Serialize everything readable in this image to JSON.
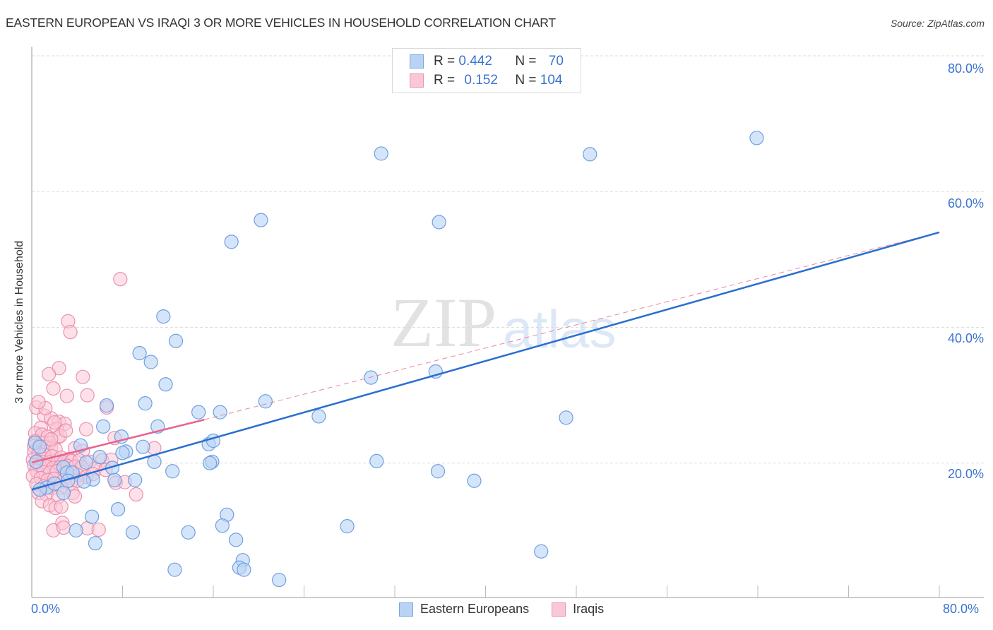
{
  "header": {
    "title": "EASTERN EUROPEAN VS IRAQI 3 OR MORE VEHICLES IN HOUSEHOLD CORRELATION CHART",
    "source": "Source: ZipAtlas.com"
  },
  "legend": {
    "rows": [
      {
        "r_label": "R = ",
        "r_value": "0.442",
        "n_label": "N = ",
        "n_value": "70"
      },
      {
        "r_label": "R = ",
        "r_value": "0.152",
        "n_label": "N = ",
        "n_value": "104"
      }
    ]
  },
  "bottom_legend": [
    {
      "label": "Eastern Europeans"
    },
    {
      "label": "Iraqis"
    }
  ],
  "axes": {
    "y_label": "3 or more Vehicles in Household",
    "x_ticks": [
      "0.0%",
      "80.0%"
    ],
    "y_ticks": [
      "80.0%",
      "60.0%",
      "40.0%",
      "20.0%"
    ]
  },
  "watermark": {
    "zip": "ZIP",
    "atlas": "atlas"
  },
  "colors": {
    "blue": "#3b73d0",
    "blue_fill": "#b9d3f5",
    "blue_stroke": "#6f9fe0",
    "pink": "#e8648f",
    "pink_fill": "#f9c8d7",
    "pink_stroke": "#ec8fae"
  },
  "chart_data": {
    "type": "scatter",
    "title": "EASTERN EUROPEAN VS IRAQI 3 OR MORE VEHICLES IN HOUSEHOLD CORRELATION CHART",
    "xlabel": "",
    "ylabel": "3 or more Vehicles in Household",
    "xlim": [
      0,
      80
    ],
    "ylim": [
      0,
      80
    ],
    "x_unit": "%",
    "y_unit": "%",
    "grid": true,
    "legend_position": "top-center",
    "series": [
      {
        "name": "Eastern Europeans",
        "R": 0.442,
        "N": 70,
        "trend": {
          "x0": 0,
          "y0": 16.1,
          "x1": 80,
          "y1": 54.0
        },
        "points": [
          [
            63.9,
            67.9
          ],
          [
            30.8,
            65.6
          ],
          [
            49.2,
            65.5
          ],
          [
            20.2,
            55.8
          ],
          [
            35.9,
            55.5
          ],
          [
            17.6,
            52.6
          ],
          [
            11.6,
            41.6
          ],
          [
            12.7,
            38.0
          ],
          [
            9.5,
            36.2
          ],
          [
            10.5,
            34.9
          ],
          [
            11.8,
            31.6
          ],
          [
            35.6,
            33.5
          ],
          [
            29.9,
            32.6
          ],
          [
            20.6,
            29.1
          ],
          [
            10.0,
            28.8
          ],
          [
            6.6,
            28.5
          ],
          [
            14.7,
            27.5
          ],
          [
            16.6,
            27.5
          ],
          [
            25.3,
            26.9
          ],
          [
            47.1,
            26.7
          ],
          [
            6.3,
            25.4
          ],
          [
            11.1,
            25.4
          ],
          [
            7.9,
            23.9
          ],
          [
            15.6,
            22.8
          ],
          [
            16.0,
            23.3
          ],
          [
            4.3,
            22.6
          ],
          [
            9.8,
            22.4
          ],
          [
            8.3,
            21.7
          ],
          [
            8.0,
            21.5
          ],
          [
            6.0,
            20.9
          ],
          [
            10.8,
            20.2
          ],
          [
            15.9,
            20.2
          ],
          [
            15.7,
            20.0
          ],
          [
            4.8,
            20.1
          ],
          [
            30.4,
            20.3
          ],
          [
            2.8,
            19.4
          ],
          [
            7.1,
            19.3
          ],
          [
            12.4,
            18.8
          ],
          [
            3.1,
            18.6
          ],
          [
            3.6,
            18.6
          ],
          [
            35.8,
            18.8
          ],
          [
            5.4,
            17.6
          ],
          [
            7.3,
            17.5
          ],
          [
            9.1,
            17.5
          ],
          [
            1.3,
            16.4
          ],
          [
            2.0,
            17.0
          ],
          [
            3.2,
            17.4
          ],
          [
            4.6,
            17.3
          ],
          [
            39.0,
            17.4
          ],
          [
            0.7,
            16.1
          ],
          [
            2.8,
            15.6
          ],
          [
            0.4,
            20.2
          ],
          [
            0.3,
            23.0
          ],
          [
            0.7,
            22.4
          ],
          [
            7.6,
            13.2
          ],
          [
            17.2,
            12.4
          ],
          [
            5.3,
            12.1
          ],
          [
            16.8,
            10.8
          ],
          [
            27.8,
            10.7
          ],
          [
            3.9,
            10.1
          ],
          [
            8.9,
            9.8
          ],
          [
            13.8,
            9.8
          ],
          [
            18.0,
            8.7
          ],
          [
            5.6,
            8.2
          ],
          [
            18.6,
            5.7
          ],
          [
            44.9,
            7.0
          ],
          [
            18.3,
            4.6
          ],
          [
            18.7,
            4.3
          ],
          [
            12.6,
            4.3
          ],
          [
            21.8,
            2.8
          ]
        ]
      },
      {
        "name": "Iraqis",
        "R": 0.152,
        "N": 104,
        "trend": {
          "x0": 0,
          "y0": 20.1,
          "x1": 15.2,
          "y1": 26.4,
          "dashed_extension_to": {
            "x": 80,
            "y": 54.0
          }
        },
        "points": [
          [
            7.8,
            47.1
          ],
          [
            3.2,
            40.9
          ],
          [
            3.4,
            39.3
          ],
          [
            2.4,
            34.0
          ],
          [
            1.5,
            33.1
          ],
          [
            4.5,
            32.7
          ],
          [
            1.9,
            31.0
          ],
          [
            3.1,
            29.9
          ],
          [
            4.9,
            30.0
          ],
          [
            6.6,
            28.2
          ],
          [
            1.1,
            27.0
          ],
          [
            1.7,
            26.6
          ],
          [
            2.4,
            26.1
          ],
          [
            2.9,
            25.8
          ],
          [
            0.8,
            25.2
          ],
          [
            2.2,
            25.0
          ],
          [
            4.8,
            25.0
          ],
          [
            0.3,
            24.4
          ],
          [
            0.9,
            24.2
          ],
          [
            1.4,
            23.9
          ],
          [
            2.3,
            23.8
          ],
          [
            0.3,
            23.2
          ],
          [
            1.0,
            23.0
          ],
          [
            1.6,
            23.0
          ],
          [
            2.5,
            24.0
          ],
          [
            7.3,
            23.7
          ],
          [
            0.2,
            22.5
          ],
          [
            0.7,
            22.5
          ],
          [
            1.2,
            22.4
          ],
          [
            1.7,
            22.2
          ],
          [
            2.1,
            22.0
          ],
          [
            3.8,
            22.2
          ],
          [
            4.5,
            21.8
          ],
          [
            10.8,
            22.2
          ],
          [
            0.2,
            21.6
          ],
          [
            0.6,
            21.4
          ],
          [
            1.1,
            21.2
          ],
          [
            1.8,
            21.0
          ],
          [
            2.6,
            20.8
          ],
          [
            3.3,
            20.6
          ],
          [
            0.1,
            20.5
          ],
          [
            0.5,
            20.3
          ],
          [
            1.0,
            20.2
          ],
          [
            1.5,
            20.1
          ],
          [
            2.2,
            20.0
          ],
          [
            2.8,
            20.1
          ],
          [
            3.5,
            20.3
          ],
          [
            4.2,
            20.4
          ],
          [
            5.1,
            20.2
          ],
          [
            6.2,
            20.4
          ],
          [
            7.0,
            20.5
          ],
          [
            0.2,
            19.7
          ],
          [
            0.7,
            19.6
          ],
          [
            1.3,
            19.5
          ],
          [
            1.9,
            19.3
          ],
          [
            2.5,
            19.4
          ],
          [
            3.1,
            19.6
          ],
          [
            3.8,
            19.5
          ],
          [
            4.4,
            19.4
          ],
          [
            5.6,
            19.2
          ],
          [
            0.4,
            18.9
          ],
          [
            1.0,
            18.7
          ],
          [
            1.6,
            18.6
          ],
          [
            2.2,
            18.8
          ],
          [
            2.9,
            18.4
          ],
          [
            3.5,
            18.6
          ],
          [
            4.1,
            18.2
          ],
          [
            4.8,
            18.0
          ],
          [
            5.4,
            18.4
          ],
          [
            6.5,
            19.0
          ],
          [
            0.1,
            18.1
          ],
          [
            0.8,
            17.8
          ],
          [
            1.4,
            17.5
          ],
          [
            2.0,
            17.7
          ],
          [
            2.7,
            17.3
          ],
          [
            3.4,
            17.0
          ],
          [
            4.0,
            17.4
          ],
          [
            0.4,
            16.9
          ],
          [
            1.1,
            16.6
          ],
          [
            1.8,
            16.3
          ],
          [
            2.6,
            16.4
          ],
          [
            7.4,
            17.1
          ],
          [
            8.2,
            17.2
          ],
          [
            0.6,
            15.6
          ],
          [
            1.3,
            15.4
          ],
          [
            2.3,
            15.0
          ],
          [
            3.6,
            15.6
          ],
          [
            3.8,
            15.1
          ],
          [
            9.2,
            15.4
          ],
          [
            0.9,
            14.4
          ],
          [
            1.6,
            13.8
          ],
          [
            2.1,
            13.4
          ],
          [
            2.6,
            13.6
          ],
          [
            2.7,
            11.2
          ],
          [
            1.9,
            10.1
          ],
          [
            2.8,
            10.5
          ],
          [
            4.9,
            10.4
          ],
          [
            5.9,
            10.2
          ],
          [
            0.4,
            28.2
          ],
          [
            1.2,
            28.1
          ],
          [
            0.6,
            29.0
          ],
          [
            1.7,
            23.5
          ],
          [
            2.0,
            26.0
          ],
          [
            3.0,
            24.8
          ]
        ]
      }
    ]
  }
}
